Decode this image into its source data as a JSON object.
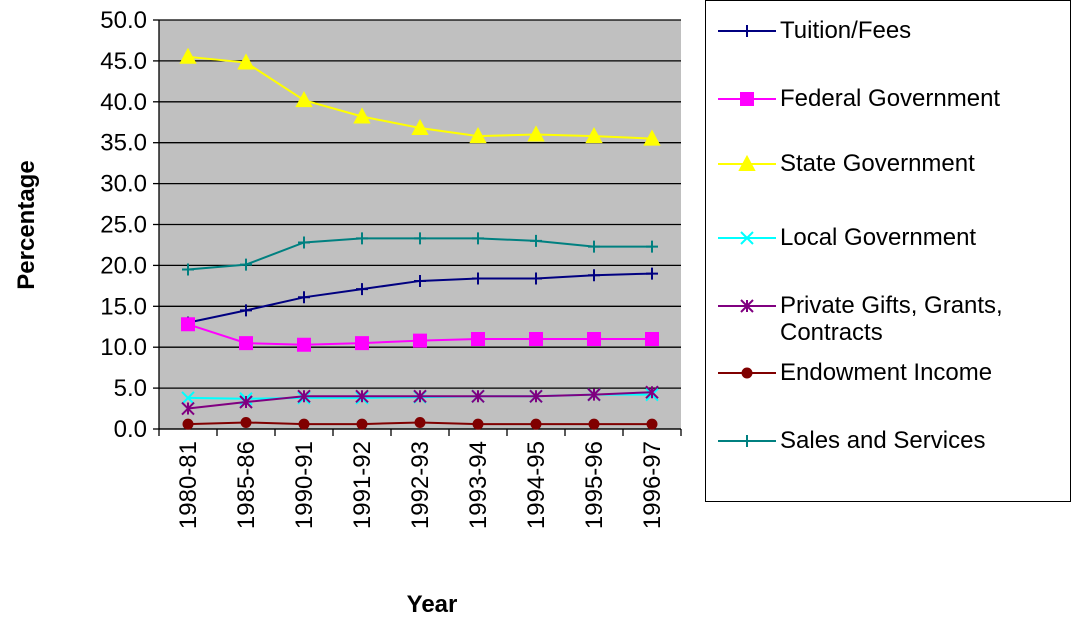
{
  "chart_data": {
    "type": "line",
    "x_label": "Year",
    "y_label": "Percentage",
    "categories": [
      "1980-81",
      "1985-86",
      "1990-91",
      "1991-92",
      "1992-93",
      "1993-94",
      "1994-95",
      "1995-96",
      "1996-97"
    ],
    "series": [
      {
        "name": "Tuition/Fees",
        "color": "#000080",
        "marker": "plus",
        "values": [
          13.0,
          14.5,
          16.1,
          17.1,
          18.1,
          18.4,
          18.4,
          18.8,
          19.0
        ]
      },
      {
        "name": "Federal Government",
        "color": "#ff00ff",
        "marker": "square",
        "values": [
          12.8,
          10.5,
          10.3,
          10.5,
          10.8,
          11.0,
          11.0,
          11.0,
          11.0
        ]
      },
      {
        "name": "State Government",
        "color": "#ffff00",
        "marker": "triangle",
        "values": [
          45.5,
          44.8,
          40.2,
          38.2,
          36.8,
          35.8,
          36.0,
          35.8,
          35.5
        ]
      },
      {
        "name": "Local Government",
        "color": "#00ffff",
        "marker": "cross",
        "values": [
          3.8,
          3.7,
          3.8,
          3.8,
          3.9,
          4.0,
          4.0,
          4.2,
          4.2
        ]
      },
      {
        "name": "Private Gifts, Grants, Contracts",
        "color": "#800080",
        "marker": "star",
        "values": [
          2.5,
          3.3,
          4.0,
          4.0,
          4.0,
          4.0,
          4.0,
          4.2,
          4.5
        ]
      },
      {
        "name": "Endowment Income",
        "color": "#800000",
        "marker": "circle",
        "values": [
          0.6,
          0.8,
          0.6,
          0.6,
          0.8,
          0.6,
          0.6,
          0.6,
          0.6
        ]
      },
      {
        "name": "Sales and Services",
        "color": "#008080",
        "marker": "plus",
        "values": [
          19.5,
          20.1,
          22.8,
          23.3,
          23.3,
          23.3,
          23.0,
          22.3,
          22.3
        ]
      }
    ],
    "ylim": [
      0,
      50
    ],
    "yticks": [
      {
        "value": 0,
        "label": "0.0"
      },
      {
        "value": 5,
        "label": "5.0"
      },
      {
        "value": 10,
        "label": "10.0"
      },
      {
        "value": 15,
        "label": "15.0"
      },
      {
        "value": 20,
        "label": "20.0"
      },
      {
        "value": 25,
        "label": "25.0"
      },
      {
        "value": 30,
        "label": "30.0"
      },
      {
        "value": 35,
        "label": "35.0"
      },
      {
        "value": 40,
        "label": "40.0"
      },
      {
        "value": 45,
        "label": "45.0"
      },
      {
        "value": 50,
        "label": "50.0"
      }
    ],
    "grid": true,
    "plot_background": "#c0c0c0",
    "legend": "right"
  }
}
